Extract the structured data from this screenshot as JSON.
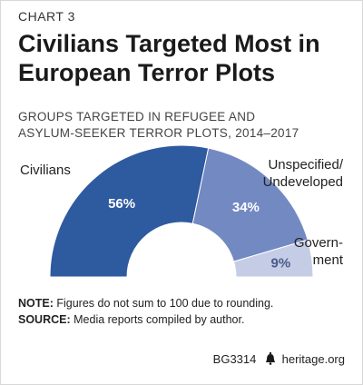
{
  "header": {
    "kicker": "CHART 3",
    "title_line1": "Civilians Targeted Most in",
    "title_line2": "European Terror Plots",
    "subtitle_line1": "GROUPS TARGETED IN REFUGEE AND",
    "subtitle_line2": "ASYLUM-SEEKER TERROR PLOTS, 2014–2017"
  },
  "chart_data": {
    "type": "pie",
    "subtype": "half-donut",
    "title": "GROUPS TARGETED IN REFUGEE AND ASYLUM-SEEKER TERROR PLOTS, 2014–2017",
    "slices": [
      {
        "label_lines": [
          "Civilians"
        ],
        "value": 56,
        "display": "56%",
        "color": "#2e5aa0"
      },
      {
        "label_lines": [
          "Unspecified/",
          "Undeveloped"
        ],
        "value": 34,
        "display": "34%",
        "color": "#7389c2"
      },
      {
        "label_lines": [
          "Govern-",
          "ment"
        ],
        "value": 9,
        "display": "9%",
        "color": "#c5cde6"
      }
    ]
  },
  "notes": {
    "note_label": "NOTE:",
    "note_text": " Figures do not sum to 100 due to rounding.",
    "source_label": "SOURCE:",
    "source_text": " Media reports compiled by author."
  },
  "footer": {
    "code": "BG3314",
    "site": "heritage.org"
  }
}
